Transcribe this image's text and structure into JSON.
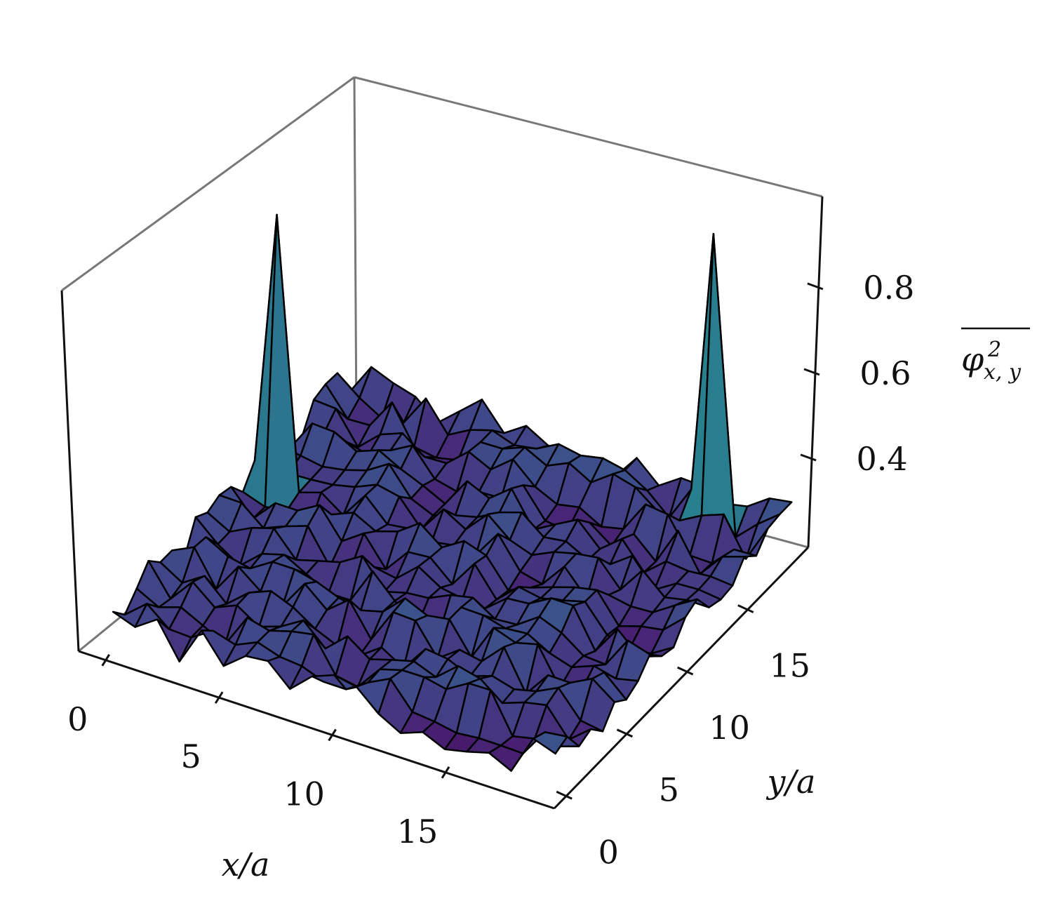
{
  "chart_data": {
    "type": "surface3d",
    "colormap": "viridis",
    "edge_color": "#000000",
    "grid": false,
    "xlabel": "x/a",
    "ylabel": "y/a",
    "zlabel": {
      "symbol": "φ",
      "superscript": "2",
      "subscript": "x, y",
      "overline": true
    },
    "x_ticks": [
      {
        "value": 0,
        "label": "0"
      },
      {
        "value": 5,
        "label": "5"
      },
      {
        "value": 10,
        "label": "10"
      },
      {
        "value": 15,
        "label": "15"
      }
    ],
    "y_ticks": [
      {
        "value": 0,
        "label": "0"
      },
      {
        "value": 5,
        "label": "5"
      },
      {
        "value": 10,
        "label": "10"
      },
      {
        "value": 15,
        "label": "15"
      }
    ],
    "z_ticks": [
      {
        "value": 0.4,
        "label": "0.4"
      },
      {
        "value": 0.6,
        "label": "0.6"
      },
      {
        "value": 0.8,
        "label": "0.8"
      }
    ],
    "xlim": [
      0,
      21
    ],
    "ylim": [
      0,
      21
    ],
    "zlim": [
      0.2,
      1.0
    ],
    "grid_points": 21,
    "background_level": 0.28,
    "noise_amplitude": 0.05,
    "peaks": [
      {
        "x": 1,
        "y": 12,
        "value": 0.9
      },
      {
        "x": 17,
        "y": 19,
        "value": 0.93
      }
    ]
  }
}
